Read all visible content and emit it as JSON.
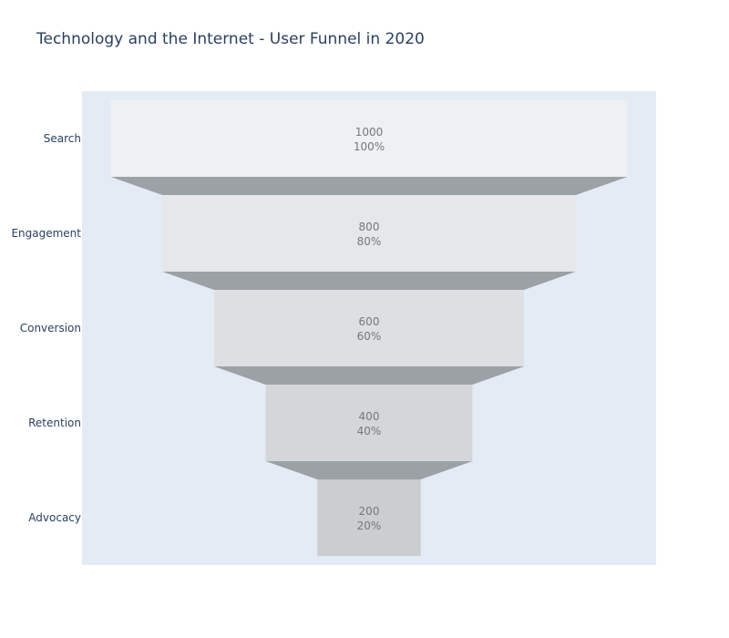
{
  "chart_data": {
    "type": "funnel",
    "title": "Technology and the Internet - User Funnel in 2020",
    "stages": [
      "Search",
      "Engagement",
      "Conversion",
      "Retention",
      "Advocacy"
    ],
    "values": [
      1000,
      800,
      600,
      400,
      200
    ],
    "percent_labels": [
      "100%",
      "80%",
      "60%",
      "40%",
      "20%"
    ],
    "colors": {
      "stage_fills": [
        "#eff0f4",
        "#e6e7ea",
        "#dedfe2",
        "#d4d6d9",
        "#cbced0"
      ],
      "connector": "#9ca1a6",
      "plot_background": "#e5ebf5",
      "text": "#777777",
      "axis_text": "#2a3f5f"
    }
  }
}
